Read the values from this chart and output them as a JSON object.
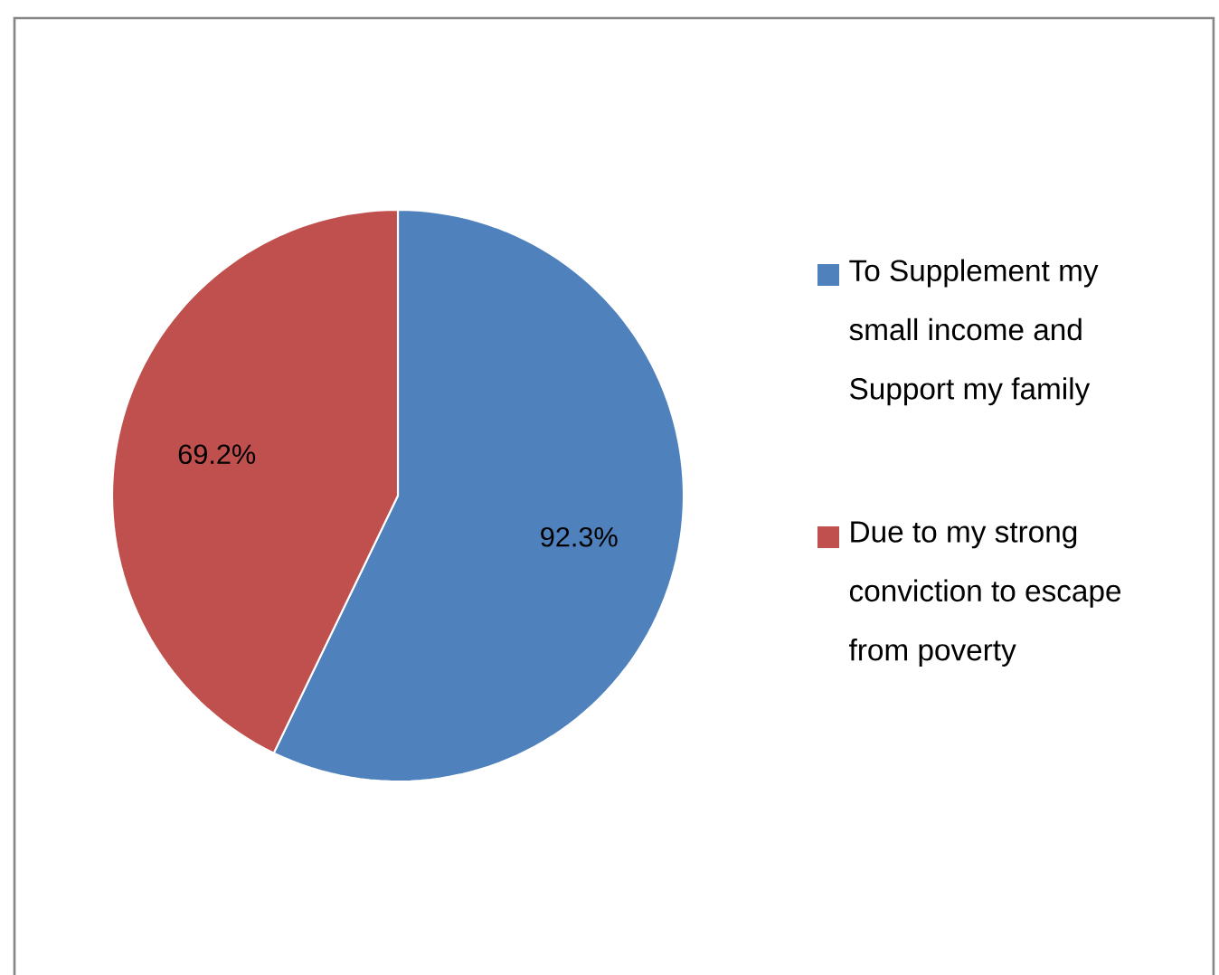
{
  "chart_data": {
    "type": "pie",
    "categories": [
      "To Supplement my small income and Support my family",
      "Due to my strong conviction to escape from poverty"
    ],
    "values": [
      92.3,
      69.2
    ],
    "value_labels": [
      "92.3%",
      "69.2%"
    ],
    "colors": [
      "#4f81bd",
      "#c0504d"
    ],
    "legend": "right"
  }
}
